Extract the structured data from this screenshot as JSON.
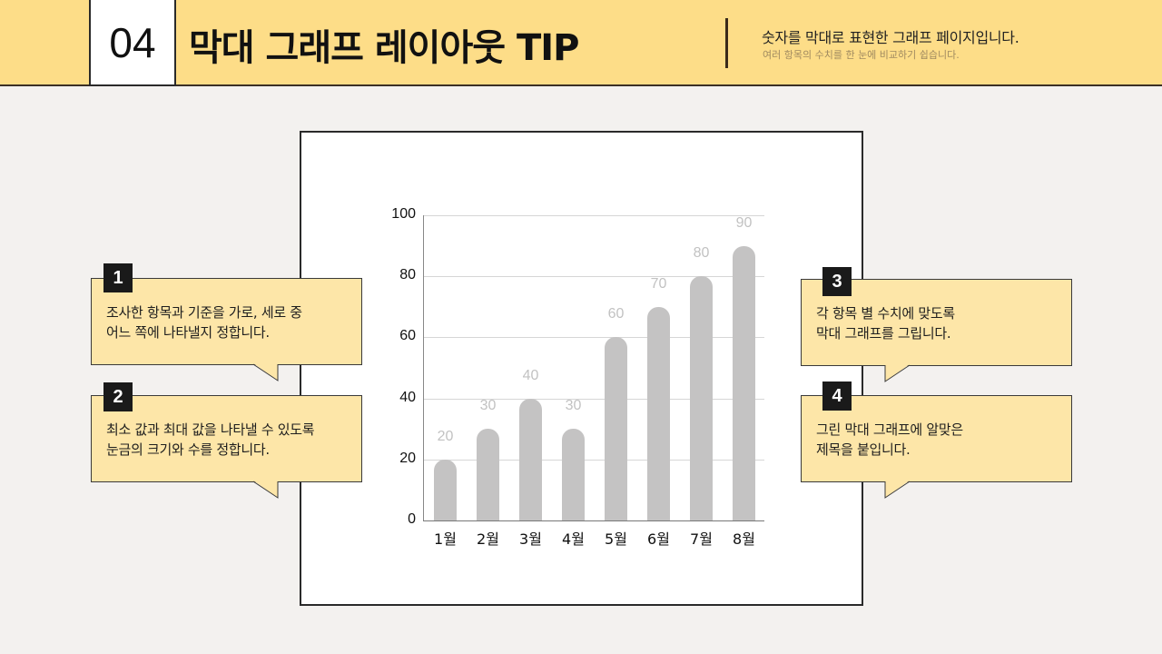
{
  "header": {
    "number": "04",
    "title": "막대 그래프 레이아웃 TIP",
    "subtitle": "숫자를 막대로 표현한 그래프 페이지입니다.",
    "description": "여러 항목의 수치를 한 눈에 비교하기 쉽습니다."
  },
  "tips": [
    {
      "number": "1",
      "line1": "조사한 항목과 기준을 가로, 세로 중",
      "line2": "어느 쪽에 나타낼지 정합니다."
    },
    {
      "number": "2",
      "line1": "최소 값과 최대 값을 나타낼 수 있도록",
      "line2": "눈금의 크기와 수를 정합니다."
    },
    {
      "number": "3",
      "line1": "각 항목 별 수치에 맞도록",
      "line2": "막대 그래프를 그립니다."
    },
    {
      "number": "4",
      "line1": "그린 막대 그래프에 알맞은",
      "line2": "제목을 붙입니다."
    }
  ],
  "colors": {
    "header_bg": "#fddd88",
    "callout_bg": "#fde6a8",
    "bar": "#c4c3c3",
    "bar_label": "#c2c2c2",
    "page_bg": "#f3f1ef"
  },
  "chart_data": {
    "type": "bar",
    "title": "",
    "xlabel": "",
    "ylabel": "",
    "categories": [
      "1월",
      "2월",
      "3월",
      "4월",
      "5월",
      "6월",
      "7월",
      "8월"
    ],
    "values": [
      20,
      30,
      40,
      30,
      60,
      70,
      80,
      90
    ],
    "value_labels": [
      "20",
      "30",
      "40",
      "30",
      "60",
      "70",
      "80",
      "90"
    ],
    "ylim": [
      0,
      100
    ],
    "yticks": [
      "0",
      "20",
      "40",
      "60",
      "80",
      "100"
    ],
    "grid": true,
    "legend": null
  }
}
